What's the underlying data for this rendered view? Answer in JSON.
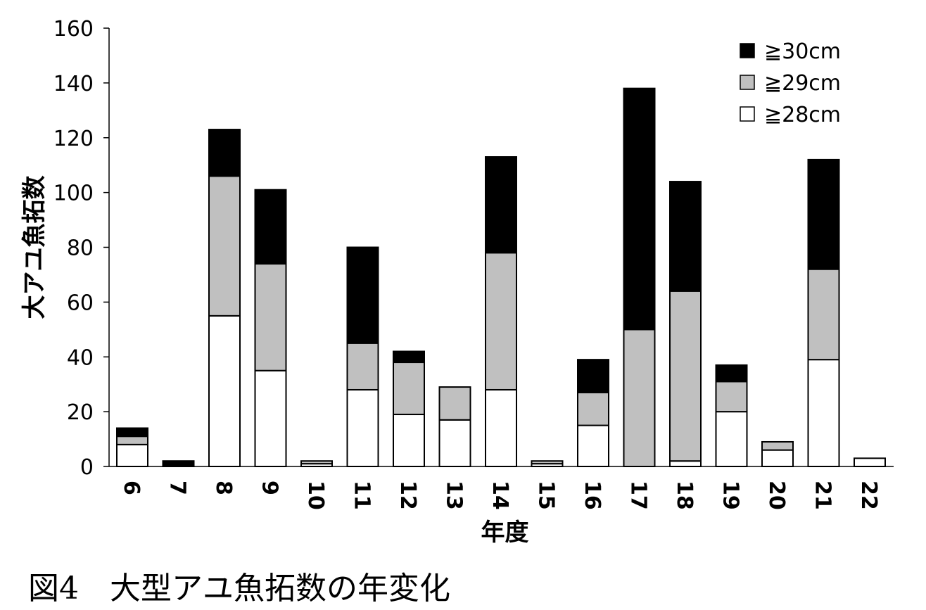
{
  "figure": {
    "caption": "図4　大型アユ魚拓数の年変化"
  },
  "chart_data": {
    "type": "bar",
    "stacked": true,
    "categories": [
      "6",
      "7",
      "8",
      "9",
      "10",
      "11",
      "12",
      "13",
      "14",
      "15",
      "16",
      "17",
      "18",
      "19",
      "20",
      "21",
      "22"
    ],
    "series": [
      {
        "name": "≧28cm",
        "color": "#ffffff",
        "values": [
          8,
          0,
          55,
          35,
          1,
          28,
          19,
          17,
          28,
          1,
          15,
          0,
          2,
          20,
          6,
          39,
          3
        ]
      },
      {
        "name": "≧29cm",
        "color": "#c0c0c0",
        "values": [
          3,
          0,
          51,
          39,
          1,
          17,
          19,
          12,
          50,
          1,
          12,
          50,
          62,
          11,
          3,
          33,
          0
        ]
      },
      {
        "name": "≧30cm",
        "color": "#000000",
        "values": [
          3,
          2,
          17,
          27,
          0,
          35,
          4,
          0,
          35,
          0,
          12,
          88,
          40,
          6,
          0,
          40,
          0
        ]
      }
    ],
    "legend_order": [
      "≧30cm",
      "≧29cm",
      "≧28cm"
    ],
    "legend_position": "top-right",
    "xlabel": "年度",
    "ylabel": "大アユ魚拓数",
    "ylim": [
      0,
      160
    ],
    "yticks": [
      0,
      20,
      40,
      60,
      80,
      100,
      120,
      140,
      160
    ],
    "grid": false
  }
}
